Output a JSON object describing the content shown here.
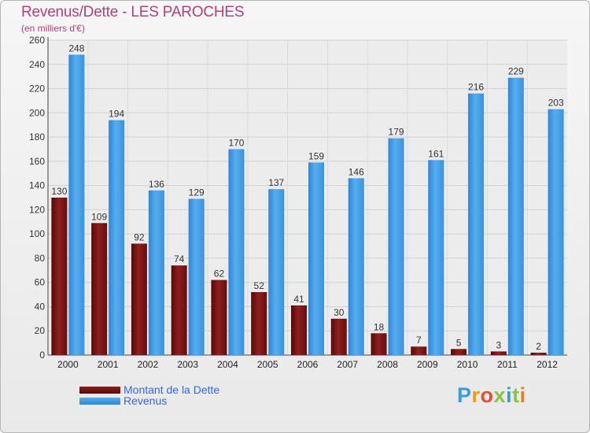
{
  "title": "Revenus/Dette - LES PAROCHES",
  "subtitle": "(en milliers d'€)",
  "logo": "Proxiti",
  "colors": {
    "debt": "#7a1414",
    "revenue": "#3d96e0",
    "title": "#b0407a",
    "legend_text": "#3a66e0"
  },
  "chart_data": {
    "type": "bar",
    "title": "Revenus/Dette - LES PAROCHES",
    "ylabel": "(en milliers d'€)",
    "xlabel": "",
    "ylim": [
      0,
      260
    ],
    "yticks": [
      0,
      20,
      40,
      60,
      80,
      100,
      120,
      140,
      160,
      180,
      200,
      220,
      240,
      260
    ],
    "grid": true,
    "legend_position": "bottom-left",
    "categories": [
      "2000",
      "2001",
      "2002",
      "2003",
      "2004",
      "2005",
      "2006",
      "2007",
      "2008",
      "2009",
      "2010",
      "2011",
      "2012"
    ],
    "series": [
      {
        "name": "Montant de la Dette",
        "values": [
          130,
          109,
          92,
          74,
          62,
          52,
          41,
          30,
          18,
          7,
          5,
          3,
          2
        ]
      },
      {
        "name": "Revenus",
        "values": [
          248,
          194,
          136,
          129,
          170,
          137,
          159,
          146,
          179,
          161,
          216,
          229,
          203
        ]
      }
    ]
  }
}
